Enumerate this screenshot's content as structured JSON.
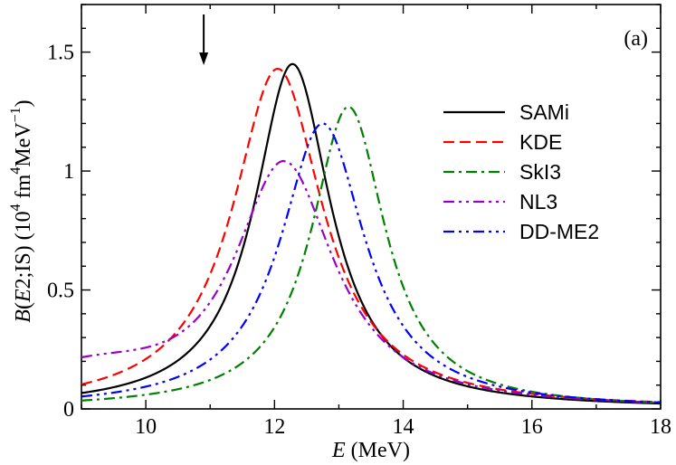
{
  "chart_data": {
    "type": "line",
    "panel_label": "(a)",
    "xlabel_italic": "E",
    "xlabel_rest": " (MeV)",
    "ylabel_parts": {
      "B": "B",
      "paren_open": "(",
      "E": "E",
      "rest": "2;IS) (10",
      "exp4": "4",
      "fm": " fm",
      "exp4b": "4",
      "mev": "MeV",
      "expm1": "−1",
      "close": ")"
    },
    "xlim": [
      9,
      18
    ],
    "ylim": [
      0,
      1.7
    ],
    "xticks": [
      10,
      12,
      14,
      16,
      18
    ],
    "xtick_labels": [
      "10",
      "12",
      "14",
      "16",
      "18"
    ],
    "yticks": [
      0,
      0.5,
      1,
      1.5
    ],
    "ytick_labels": [
      "0",
      "0.5",
      "1",
      "1.5"
    ],
    "arrow_x": 10.9,
    "legend_position": "right",
    "series": [
      {
        "name": "SAMi",
        "color": "#000000",
        "dash": "",
        "center": 12.28,
        "peak": 1.45,
        "width": 0.72,
        "offset": 0.0
      },
      {
        "name": "KDE",
        "color": "#ff0000",
        "dash": "12 6",
        "center": 12.05,
        "peak": 1.43,
        "width": 0.85,
        "offset": 0.0
      },
      {
        "name": "SkI3",
        "color": "#008000",
        "dash": "12 5 3 5",
        "center": 13.15,
        "peak": 1.27,
        "width": 0.7,
        "offset": 0.0
      },
      {
        "name": "NL3",
        "color": "#9900cc",
        "dash": "12 5 3 5 3 5",
        "center": 12.15,
        "peak": 1.04,
        "width": 0.95,
        "offset": 0.13
      },
      {
        "name": "DD-ME2",
        "color": "#0000ff",
        "dash": "12 5 3 5 3 5",
        "center": 12.75,
        "peak": 1.2,
        "width": 0.8,
        "offset": 0.0
      }
    ]
  }
}
